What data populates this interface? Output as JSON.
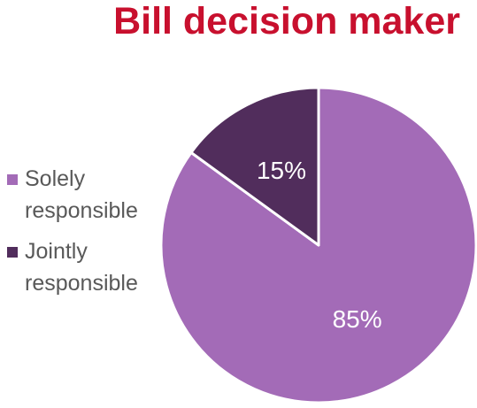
{
  "chart_data": {
    "type": "pie",
    "title": "Bill decision maker",
    "categories": [
      "Solely responsible",
      "Jointly responsible"
    ],
    "values": [
      85,
      15
    ],
    "labels": [
      "85%",
      "15%"
    ],
    "colors": [
      "#a36bb7",
      "#512d5c"
    ],
    "slice_border_color": "#ffffff",
    "start_angle_deg": 0,
    "direction": "clockwise",
    "legend_position": "left",
    "title_color": "#c8102e"
  }
}
